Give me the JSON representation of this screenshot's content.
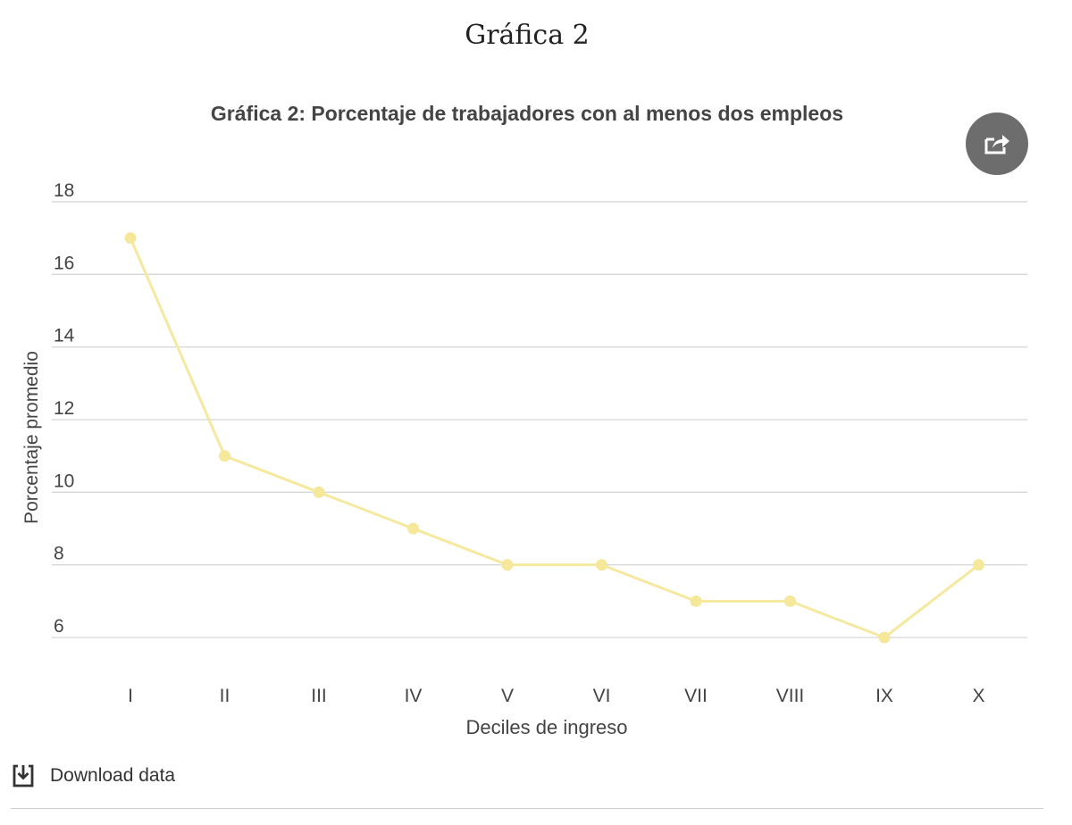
{
  "page": {
    "title": "Gráfica 2"
  },
  "share": {
    "icon": "share-icon"
  },
  "download": {
    "label": "Download data",
    "icon": "download-icon"
  },
  "chart_data": {
    "type": "line",
    "title": "Gráfica 2: Porcentaje de trabajadores con al menos dos empleos",
    "xlabel": "Deciles de ingreso",
    "ylabel": "Porcentaje promedio",
    "categories": [
      "I",
      "II",
      "III",
      "IV",
      "V",
      "VI",
      "VII",
      "VIII",
      "IX",
      "X"
    ],
    "series": [
      {
        "values": [
          17,
          11,
          10,
          9,
          8,
          8,
          7,
          7,
          6,
          8
        ]
      }
    ],
    "yticks": [
      6,
      8,
      10,
      12,
      14,
      16,
      18
    ],
    "ylim": [
      6,
      18
    ],
    "grid": true,
    "line_color": "#f5e9a0",
    "point_color": "#f5e89a"
  }
}
